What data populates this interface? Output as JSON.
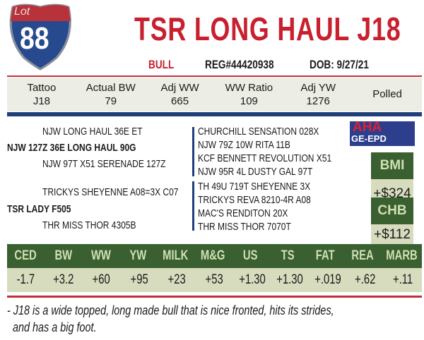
{
  "lot": {
    "label": "Lot",
    "number": "88"
  },
  "title": "TSR LONG HAUL J18",
  "sex": "BULL",
  "reg": "REG#44420938",
  "dob": "DOB: 9/27/21",
  "stats": [
    {
      "label": "Tattoo",
      "value": "J18"
    },
    {
      "label": "Actual BW",
      "value": "79"
    },
    {
      "label": "Adj WW",
      "value": "665"
    },
    {
      "label": "WW Ratio",
      "value": "109"
    },
    {
      "label": "Adj YW",
      "value": "1276"
    },
    {
      "label": "Polled",
      "value": ""
    }
  ],
  "pedigree": {
    "sire": "NJW 127Z 36E LONG HAUL 90G",
    "sire_sire": "NJW LONG HAUL 36E ET",
    "sire_dam": "NJW 97T X51 SERENADE 127Z",
    "dam": "TSR LADY F505",
    "dam_sire": "TRICKYS SHEYENNE A08=3X C07",
    "dam_dam": "THR MISS THOR 4305B",
    "third": [
      "CHURCHILL SENSATION 028X",
      "NJW 79Z 10W RITA 11B",
      "KCF BENNETT REVOLUTION X51",
      "NJW 95R 4L DUSTY GAL 97T",
      "TH 49U 719T SHEYENNE 3X",
      "TRICKYS REVA 8210-4R A08",
      "MAC'S RENDITON 20X",
      "THR MISS THOR 7070T"
    ]
  },
  "logo": {
    "top": "AHA",
    "bottom": "GE-EPD"
  },
  "indexes": [
    {
      "label": "BMI",
      "value": "+$324"
    },
    {
      "label": "CHB",
      "value": "+$112"
    }
  ],
  "epd_headers": [
    "CED",
    "BW",
    "WW",
    "YW",
    "MILK",
    "M&G",
    "US",
    "TS",
    "FAT",
    "REA",
    "MARB"
  ],
  "epd_values": [
    "-1.7",
    "+3.2",
    "+60",
    "+95",
    "+23",
    "+53",
    "+1.30",
    "+1.30",
    "+.019",
    "+.62",
    "+.11"
  ],
  "comment": [
    "- J18 is a wide topped, long made bull that is nice fronted, hits its strides,",
    "and has a big foot."
  ],
  "colors": {
    "red": "#c8202e",
    "blue": "#1f3f7a",
    "green": "#3a5f31",
    "sage": "#d6dcbd"
  }
}
